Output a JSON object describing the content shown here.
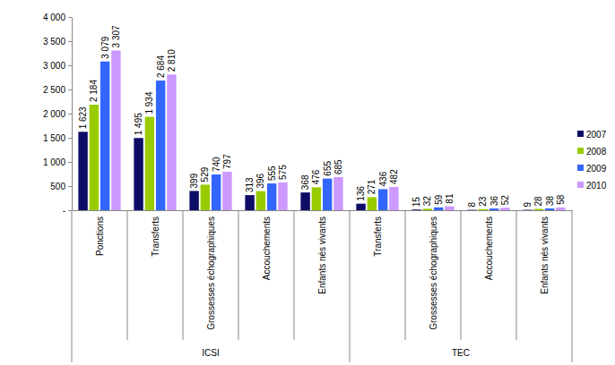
{
  "chart_data": {
    "type": "bar",
    "categories": [
      "Ponctions",
      "Transferts",
      "Grossesses échographiques",
      "Accouchements",
      "Enfants nés vivants",
      "Transferts",
      "Grossesses échographiques",
      "Accouchements",
      "Enfants nés vivants"
    ],
    "category_groups": [
      "ICSI",
      "ICSI",
      "ICSI",
      "ICSI",
      "ICSI",
      "TEC",
      "TEC",
      "TEC",
      "TEC"
    ],
    "series": [
      {
        "name": "2007",
        "color": "#0d0d66",
        "values": [
          1623,
          1495,
          399,
          313,
          368,
          136,
          15,
          8,
          9
        ],
        "value_labels": [
          "1 623",
          "1 495",
          "399",
          "313",
          "368",
          "136",
          "15",
          "8",
          "9"
        ]
      },
      {
        "name": "2008",
        "color": "#99cc00",
        "values": [
          2184,
          1934,
          529,
          396,
          476,
          271,
          32,
          23,
          28
        ],
        "value_labels": [
          "2 184",
          "1 934",
          "529",
          "396",
          "476",
          "271",
          "32",
          "23",
          "28"
        ]
      },
      {
        "name": "2009",
        "color": "#3366ff",
        "values": [
          3079,
          2684,
          740,
          555,
          655,
          436,
          59,
          36,
          38
        ],
        "value_labels": [
          "3 079",
          "2 684",
          "740",
          "555",
          "655",
          "436",
          "59",
          "36",
          "38"
        ]
      },
      {
        "name": "2010",
        "color": "#cc99ff",
        "values": [
          3307,
          2810,
          797,
          575,
          685,
          482,
          81,
          52,
          58
        ],
        "value_labels": [
          "3 307",
          "2 810",
          "797",
          "575",
          "685",
          "482",
          "81",
          "52",
          "58"
        ]
      }
    ],
    "ylim": [
      0,
      4000
    ],
    "yticks": [
      {
        "value": 0,
        "label": "-"
      },
      500,
      {
        "value": 1000,
        "label": "1 000"
      },
      {
        "value": 1500,
        "label": "1 500"
      },
      {
        "value": 2000,
        "label": "2 000"
      },
      {
        "value": 2500,
        "label": "2 500"
      },
      {
        "value": 3000,
        "label": "3 000"
      },
      {
        "value": 3500,
        "label": "3 500"
      },
      {
        "value": 4000,
        "label": "4 000"
      }
    ],
    "grid": false,
    "legend": "right",
    "data_labels": true
  }
}
